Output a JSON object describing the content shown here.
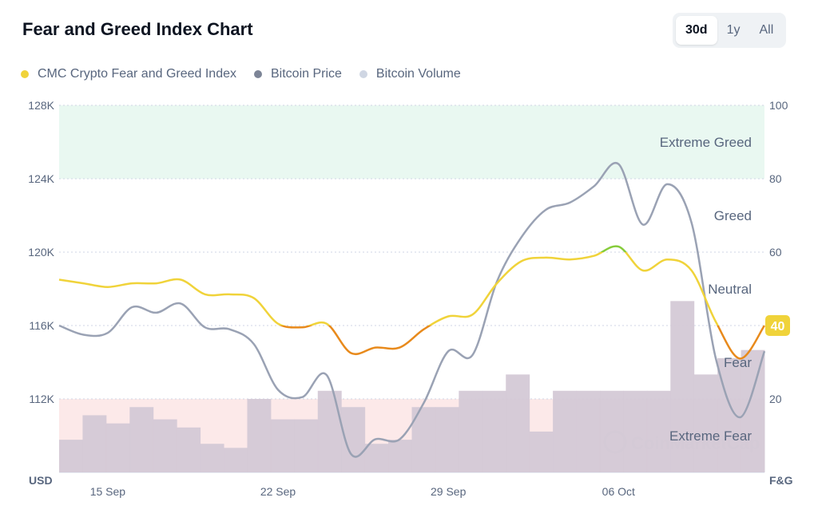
{
  "header": {
    "title": "Fear and Greed Index Chart",
    "ranges": [
      {
        "label": "30d",
        "active": true
      },
      {
        "label": "1y",
        "active": false
      },
      {
        "label": "All",
        "active": false
      }
    ]
  },
  "legend": [
    {
      "label": "CMC Crypto Fear and Greed Index",
      "color": "#f0d33a"
    },
    {
      "label": "Bitcoin Price",
      "color": "#7d8597"
    },
    {
      "label": "Bitcoin Volume",
      "color": "#cfd6e3"
    }
  ],
  "watermark": "CoinMarketCap",
  "chart_data": {
    "type": "line",
    "left_axis_label": "USD",
    "right_axis_label": "F&G",
    "left_ticks": [
      {
        "value": 128000,
        "label": "128K"
      },
      {
        "value": 124000,
        "label": "124K"
      },
      {
        "value": 120000,
        "label": "120K"
      },
      {
        "value": 116000,
        "label": "116K"
      },
      {
        "value": 112000,
        "label": "112K"
      }
    ],
    "right_ticks": [
      {
        "value": 100,
        "label": "100"
      },
      {
        "value": 80,
        "label": "80"
      },
      {
        "value": 60,
        "label": "60"
      },
      {
        "value": 40,
        "label": "40"
      },
      {
        "value": 20,
        "label": "20"
      }
    ],
    "ylim_usd": [
      108000,
      128000
    ],
    "ylim_fg": [
      0,
      100
    ],
    "x_labels": [
      {
        "day": 2,
        "label": "15 Sep"
      },
      {
        "day": 9,
        "label": "22 Sep"
      },
      {
        "day": 16,
        "label": "29 Sep"
      },
      {
        "day": 23,
        "label": "06 Oct"
      }
    ],
    "x_range": [
      0,
      29
    ],
    "zones": [
      {
        "label": "Extreme Greed",
        "from": 80,
        "to": 100,
        "color": "#e9f8f1"
      },
      {
        "label": "Greed",
        "from": 60,
        "to": 80
      },
      {
        "label": "Neutral",
        "from": 40,
        "to": 60
      },
      {
        "label": "Fear",
        "from": 20,
        "to": 40
      },
      {
        "label": "Extreme Fear",
        "from": 0,
        "to": 20,
        "color": "#fce9e9"
      }
    ],
    "series": [
      {
        "name": "CMC Crypto Fear and Greed Index",
        "axis": "right",
        "points": [
          [
            0,
            52.5
          ],
          [
            1,
            51.5
          ],
          [
            2,
            50.5
          ],
          [
            3,
            51.5
          ],
          [
            4,
            51.5
          ],
          [
            5,
            52.5
          ],
          [
            6,
            48.5
          ],
          [
            7,
            48.5
          ],
          [
            8,
            47.5
          ],
          [
            9,
            40.5
          ],
          [
            10,
            39.5
          ],
          [
            11,
            40.5
          ],
          [
            12,
            32.5
          ],
          [
            13,
            34
          ],
          [
            14,
            34
          ],
          [
            15,
            39
          ],
          [
            16,
            42.5
          ],
          [
            17,
            43
          ],
          [
            18,
            51.5
          ],
          [
            19,
            57.5
          ],
          [
            20,
            58.5
          ],
          [
            21,
            58
          ],
          [
            22,
            59
          ],
          [
            23,
            61.5
          ],
          [
            24,
            55
          ],
          [
            25,
            58
          ],
          [
            26,
            55
          ],
          [
            27,
            41
          ],
          [
            28,
            31
          ],
          [
            29,
            40
          ]
        ],
        "color_bands": [
          {
            "below": 40,
            "color": "#e88a1c"
          },
          {
            "below": 60,
            "color": "#f0d33a"
          },
          {
            "below": 80,
            "color": "#86cc3b"
          }
        ]
      },
      {
        "name": "Bitcoin Price",
        "axis": "left",
        "color": "#9aa2b4",
        "points": [
          [
            0,
            116000
          ],
          [
            1,
            115500
          ],
          [
            2,
            115600
          ],
          [
            3,
            117000
          ],
          [
            4,
            116700
          ],
          [
            5,
            117200
          ],
          [
            6,
            115900
          ],
          [
            7,
            115800
          ],
          [
            8,
            115000
          ],
          [
            9,
            112500
          ],
          [
            10,
            112100
          ],
          [
            11,
            113300
          ],
          [
            12,
            109000
          ],
          [
            13,
            109800
          ],
          [
            14,
            109800
          ],
          [
            15,
            111800
          ],
          [
            16,
            114600
          ],
          [
            17,
            114400
          ],
          [
            18,
            118400
          ],
          [
            19,
            120800
          ],
          [
            20,
            122300
          ],
          [
            21,
            122700
          ],
          [
            22,
            123600
          ],
          [
            23,
            124800
          ],
          [
            24,
            121500
          ],
          [
            25,
            123700
          ],
          [
            26,
            121600
          ],
          [
            27,
            114200
          ],
          [
            28,
            111000
          ],
          [
            29,
            114600
          ]
        ]
      },
      {
        "name": "Bitcoin Volume",
        "axis": "volume",
        "color": "#d4c9d6",
        "values": [
          4,
          7,
          6,
          8,
          6.5,
          5.5,
          3.5,
          3,
          9,
          6.5,
          6.5,
          10,
          8,
          3.5,
          4,
          8,
          8,
          10,
          10,
          12,
          5,
          10,
          10,
          10,
          10,
          10,
          21,
          12,
          14,
          15
        ],
        "ymax": 45
      }
    ],
    "current_value": {
      "value": 40,
      "label": "40",
      "color": "#f0d33a"
    }
  }
}
